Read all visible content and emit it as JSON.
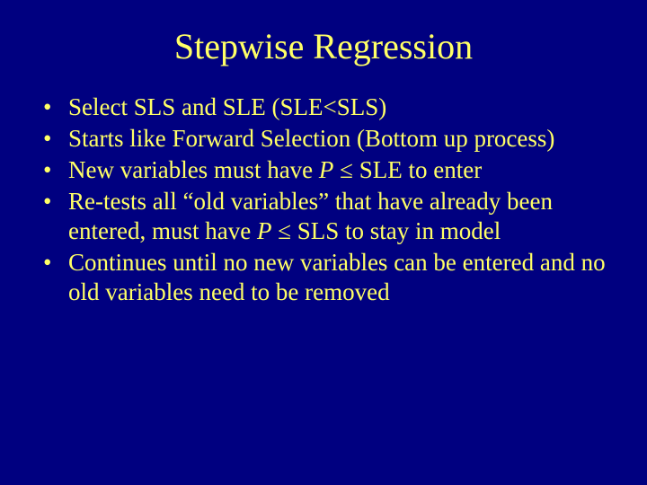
{
  "slide": {
    "background_color": "#000080",
    "text_color": "#ffff66",
    "title": "Stepwise Regression",
    "title_fontsize": 40,
    "body_fontsize": 27,
    "line_height": 1.22,
    "bullets": [
      {
        "text": "Select SLS and SLE (SLE<SLS)"
      },
      {
        "text": "Starts like Forward Selection (Bottom up process)"
      },
      {
        "html": "New variables must have <span class=\"italic\">P</span> ≤ SLE to enter"
      },
      {
        "html": "Re-tests all “old variables” that have already been entered, must have <span class=\"italic\">P</span> ≤ SLS to stay in model"
      },
      {
        "text": "Continues until no new variables can be entered and no old variables need to be removed"
      }
    ]
  }
}
